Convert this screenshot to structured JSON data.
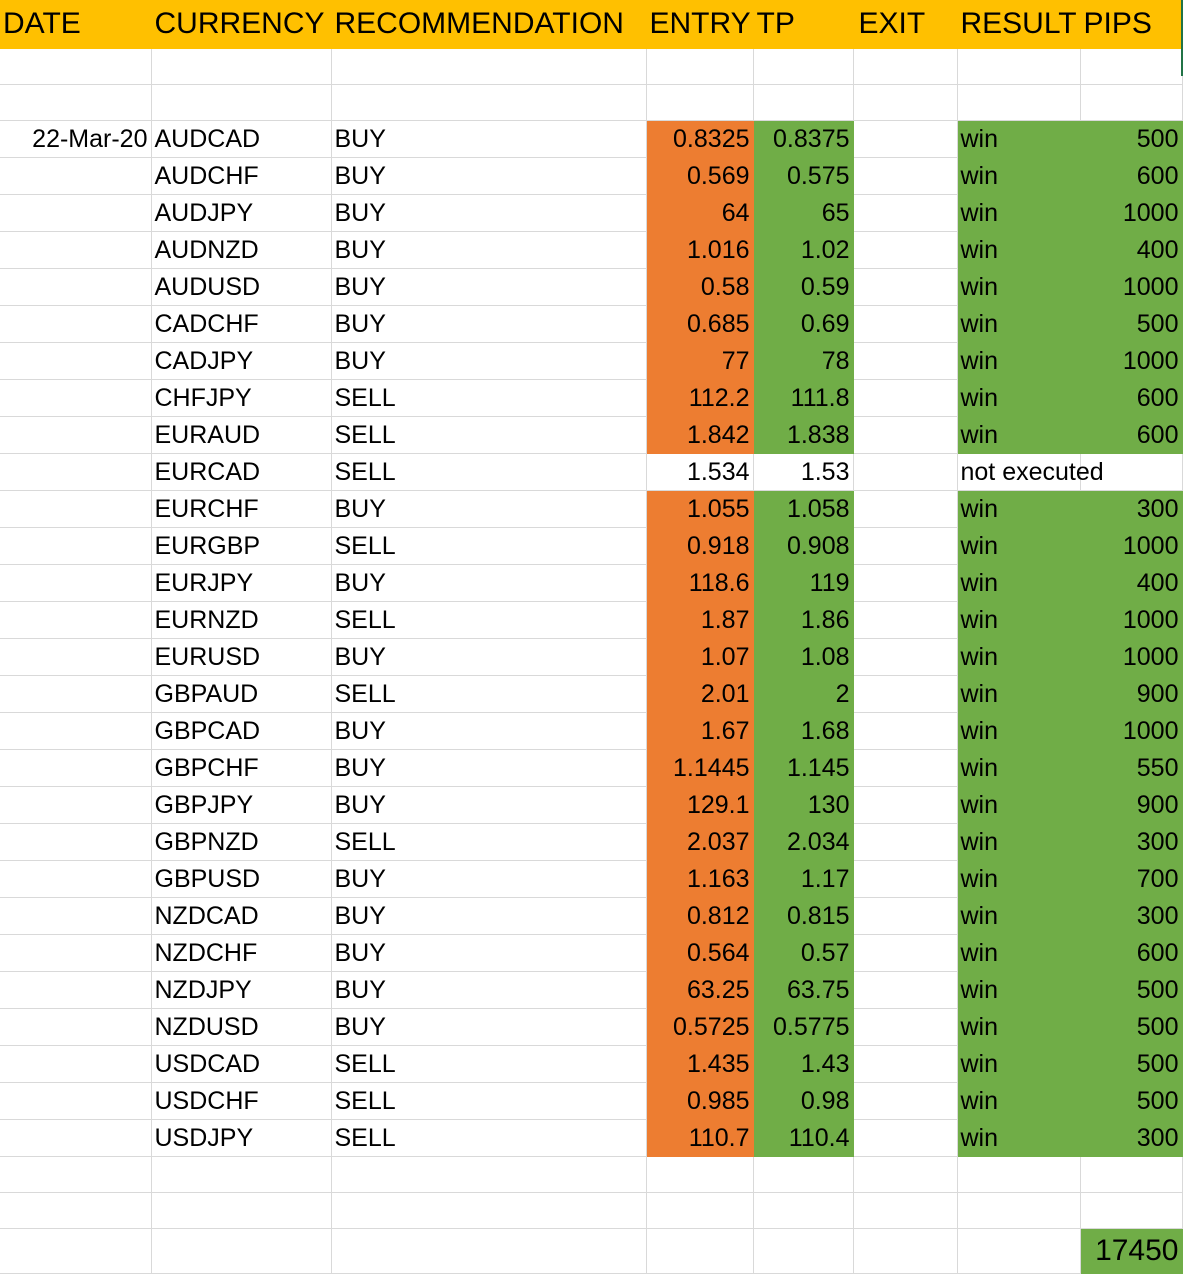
{
  "headers": {
    "date": "DATE",
    "currency": "CURRENCY",
    "recommendation": "RECOMMENDATION",
    "entry": "ENTRY",
    "tp": "TP",
    "exit": "EXIT",
    "result": "RESULT",
    "pips": "PIPS"
  },
  "date": "22-Mar-20",
  "rows": [
    {
      "currency": "AUDCAD",
      "rec": "BUY",
      "entry": "0.8325",
      "tp": "0.8375",
      "result": "win",
      "pips": "500",
      "executed": true
    },
    {
      "currency": "AUDCHF",
      "rec": "BUY",
      "entry": "0.569",
      "tp": "0.575",
      "result": "win",
      "pips": "600",
      "executed": true
    },
    {
      "currency": "AUDJPY",
      "rec": "BUY",
      "entry": "64",
      "tp": "65",
      "result": "win",
      "pips": "1000",
      "executed": true
    },
    {
      "currency": "AUDNZD",
      "rec": "BUY",
      "entry": "1.016",
      "tp": "1.02",
      "result": "win",
      "pips": "400",
      "executed": true
    },
    {
      "currency": "AUDUSD",
      "rec": "BUY",
      "entry": "0.58",
      "tp": "0.59",
      "result": "win",
      "pips": "1000",
      "executed": true
    },
    {
      "currency": "CADCHF",
      "rec": "BUY",
      "entry": "0.685",
      "tp": "0.69",
      "result": "win",
      "pips": "500",
      "executed": true
    },
    {
      "currency": "CADJPY",
      "rec": "BUY",
      "entry": "77",
      "tp": "78",
      "result": "win",
      "pips": "1000",
      "executed": true
    },
    {
      "currency": "CHFJPY",
      "rec": "SELL",
      "entry": "112.2",
      "tp": "111.8",
      "result": "win",
      "pips": "600",
      "executed": true
    },
    {
      "currency": "EURAUD",
      "rec": "SELL",
      "entry": "1.842",
      "tp": "1.838",
      "result": "win",
      "pips": "600",
      "executed": true
    },
    {
      "currency": "EURCAD",
      "rec": "SELL",
      "entry": "1.534",
      "tp": "1.53",
      "result": "not executed",
      "pips": "",
      "executed": false
    },
    {
      "currency": "EURCHF",
      "rec": "BUY",
      "entry": "1.055",
      "tp": "1.058",
      "result": "win",
      "pips": "300",
      "executed": true
    },
    {
      "currency": "EURGBP",
      "rec": "SELL",
      "entry": "0.918",
      "tp": "0.908",
      "result": "win",
      "pips": "1000",
      "executed": true
    },
    {
      "currency": "EURJPY",
      "rec": "BUY",
      "entry": "118.6",
      "tp": "119",
      "result": "win",
      "pips": "400",
      "executed": true
    },
    {
      "currency": "EURNZD",
      "rec": "SELL",
      "entry": "1.87",
      "tp": "1.86",
      "result": "win",
      "pips": "1000",
      "executed": true
    },
    {
      "currency": "EURUSD",
      "rec": "BUY",
      "entry": "1.07",
      "tp": "1.08",
      "result": "win",
      "pips": "1000",
      "executed": true
    },
    {
      "currency": "GBPAUD",
      "rec": "SELL",
      "entry": "2.01",
      "tp": "2",
      "result": "win",
      "pips": "900",
      "executed": true
    },
    {
      "currency": "GBPCAD",
      "rec": "BUY",
      "entry": "1.67",
      "tp": "1.68",
      "result": "win",
      "pips": "1000",
      "executed": true
    },
    {
      "currency": "GBPCHF",
      "rec": "BUY",
      "entry": "1.1445",
      "tp": "1.145",
      "result": "win",
      "pips": "550",
      "executed": true
    },
    {
      "currency": "GBPJPY",
      "rec": "BUY",
      "entry": "129.1",
      "tp": "130",
      "result": "win",
      "pips": "900",
      "executed": true
    },
    {
      "currency": "GBPNZD",
      "rec": "SELL",
      "entry": "2.037",
      "tp": "2.034",
      "result": "win",
      "pips": "300",
      "executed": true
    },
    {
      "currency": "GBPUSD",
      "rec": "BUY",
      "entry": "1.163",
      "tp": "1.17",
      "result": "win",
      "pips": "700",
      "executed": true
    },
    {
      "currency": "NZDCAD",
      "rec": "BUY",
      "entry": "0.812",
      "tp": "0.815",
      "result": "win",
      "pips": "300",
      "executed": true
    },
    {
      "currency": "NZDCHF",
      "rec": "BUY",
      "entry": "0.564",
      "tp": "0.57",
      "result": "win",
      "pips": "600",
      "executed": true
    },
    {
      "currency": "NZDJPY",
      "rec": "BUY",
      "entry": "63.25",
      "tp": "63.75",
      "result": "win",
      "pips": "500",
      "executed": true
    },
    {
      "currency": "NZDUSD",
      "rec": "BUY",
      "entry": "0.5725",
      "tp": "0.5775",
      "result": "win",
      "pips": "500",
      "executed": true
    },
    {
      "currency": "USDCAD",
      "rec": "SELL",
      "entry": "1.435",
      "tp": "1.43",
      "result": "win",
      "pips": "500",
      "executed": true
    },
    {
      "currency": "USDCHF",
      "rec": "SELL",
      "entry": "0.985",
      "tp": "0.98",
      "result": "win",
      "pips": "500",
      "executed": true
    },
    {
      "currency": "USDJPY",
      "rec": "SELL",
      "entry": "110.7",
      "tp": "110.4",
      "result": "win",
      "pips": "300",
      "executed": true
    }
  ],
  "total_pips": "17450",
  "colors": {
    "header": "#ffc000",
    "entry_fill": "#ed7d31",
    "green_fill": "#70ad47"
  }
}
